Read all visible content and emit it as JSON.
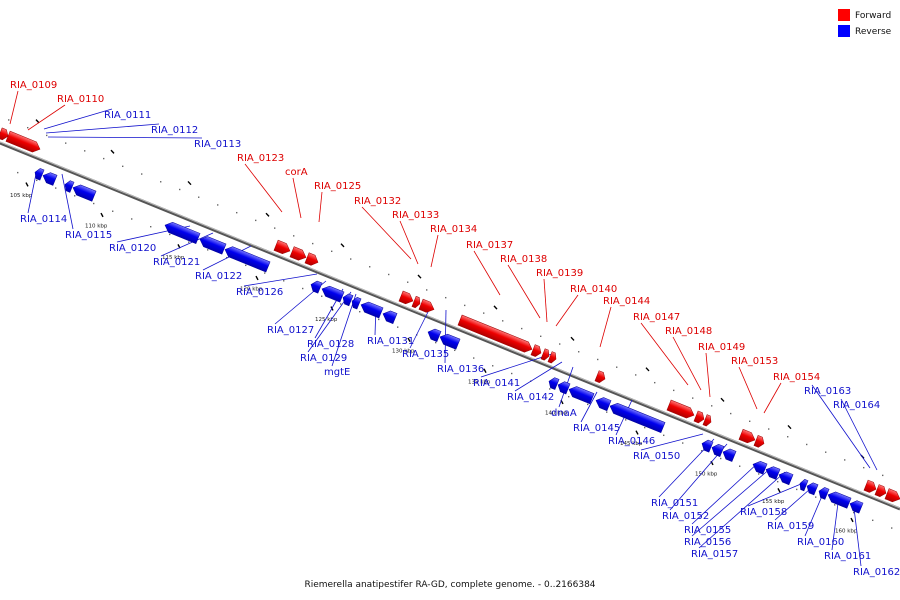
{
  "caption": "Riemerella anatipestifer RA-GD, complete genome. - 0..2166384",
  "legend": {
    "forward": {
      "label": "Forward",
      "color": "#ff0000"
    },
    "reverse": {
      "label": "Reverse",
      "color": "#0000ff"
    }
  },
  "ticks": [
    "105 kbp",
    "110 kbp",
    "115 kbp",
    "120 kbp",
    "125 kbp",
    "130 kbp",
    "135 kbp",
    "140 kbp",
    "145 kbp",
    "150 kbp",
    "155 kbp",
    "160 kbp"
  ],
  "forward_genes": [
    "RIA_0109",
    "RIA_0110",
    "RIA_0123",
    "corA",
    "RIA_0125",
    "RIA_0132",
    "RIA_0133",
    "RIA_0134",
    "RIA_0137",
    "RIA_0138",
    "RIA_0139",
    "RIA_0140",
    "RIA_0144",
    "RIA_0147",
    "RIA_0148",
    "RIA_0149",
    "RIA_0153",
    "RIA_0154"
  ],
  "reverse_genes": [
    "RIA_0111",
    "RIA_0112",
    "RIA_0113",
    "RIA_0114",
    "RIA_0115",
    "RIA_0120",
    "RIA_0121",
    "RIA_0122",
    "RIA_0126",
    "RIA_0127",
    "RIA_0128",
    "RIA_0129",
    "mgtE",
    "RIA_0131",
    "RIA_0135",
    "RIA_0136",
    "RIA_0141",
    "RIA_0142",
    "dnaA",
    "RIA_0145",
    "RIA_0146",
    "RIA_0150",
    "RIA_0151",
    "RIA_0152",
    "RIA_0155",
    "RIA_0156",
    "RIA_0157",
    "RIA_0158",
    "RIA_0159",
    "RIA_0160",
    "RIA_0161",
    "RIA_0162",
    "RIA_0163",
    "RIA_0164"
  ]
}
